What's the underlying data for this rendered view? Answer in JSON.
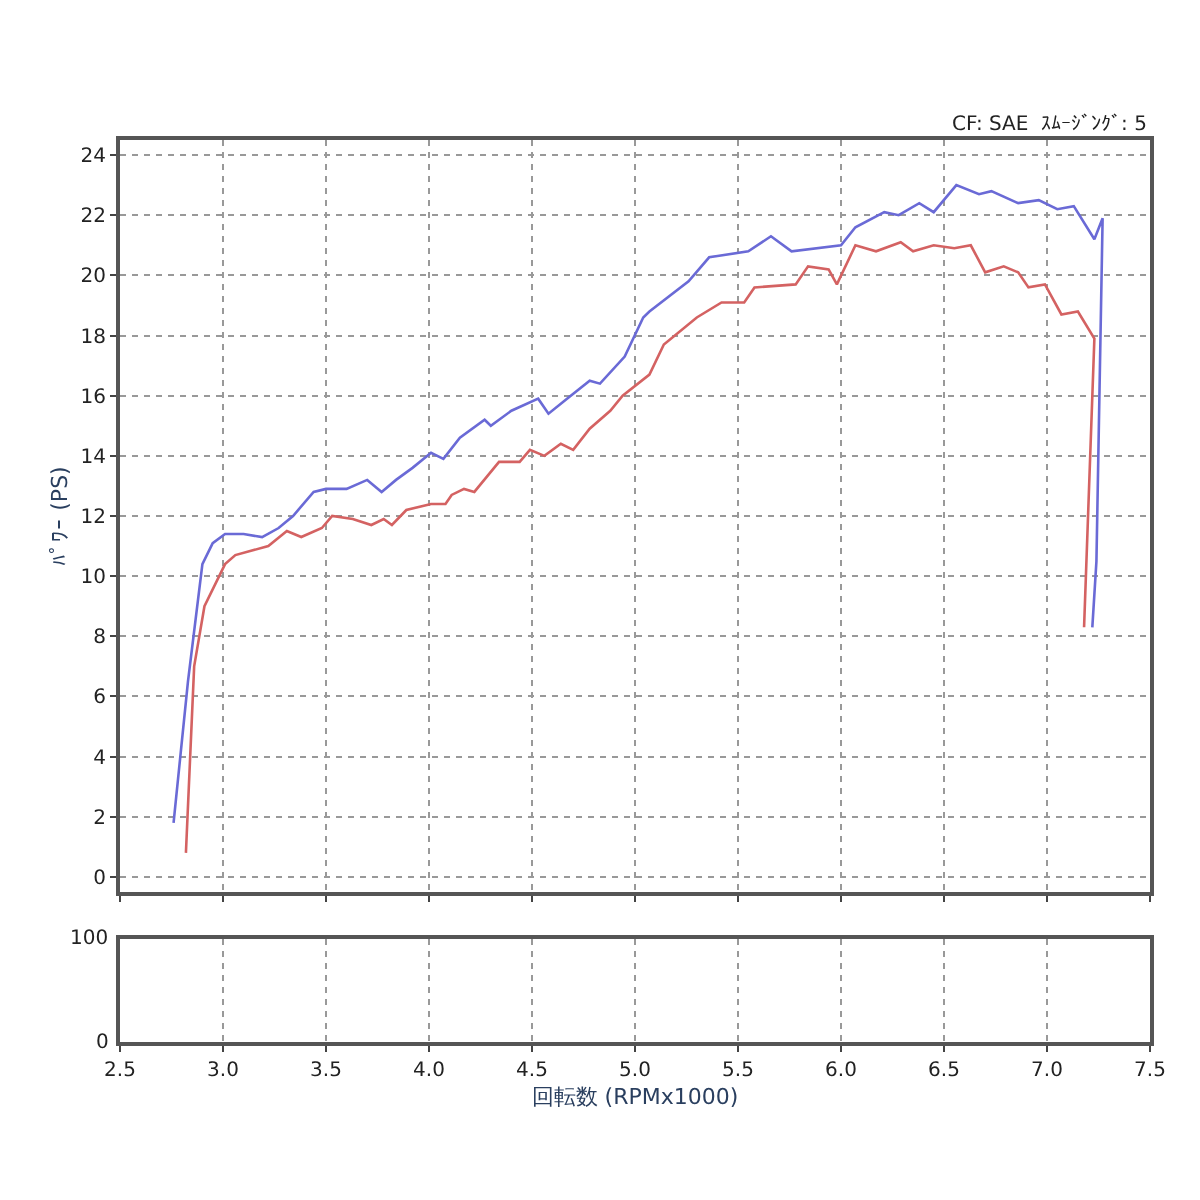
{
  "chart_data": [
    {
      "type": "line",
      "ylabel": "ﾊﾟﾜｰ (PS)",
      "xlabel": "回転数 (RPMx1000)",
      "annotations": [
        "CF: SAE  ｽﾑｰｼﾞﾝｸﾞ: 5"
      ],
      "grid": true,
      "line_style": "solid",
      "xlim": [
        2.5,
        7.5
      ],
      "xticks": [
        2.5,
        {
          "value": 3,
          "label": "3.0"
        },
        3.5,
        {
          "value": 4,
          "label": "4.0"
        },
        4.5,
        {
          "value": 5,
          "label": "5.0"
        },
        5.5,
        {
          "value": 6,
          "label": "6.0"
        },
        6.5,
        {
          "value": 7,
          "label": "7.0"
        },
        7.5
      ],
      "ylim": [
        -0.5,
        24.5
      ],
      "yticks": [
        0,
        2,
        4,
        6,
        8,
        10,
        12,
        14,
        16,
        18,
        20,
        22,
        24
      ],
      "series": [
        {
          "color": "#6a6ad6",
          "x": [
            2.76,
            2.83,
            2.9,
            2.95,
            3.01,
            3.1,
            3.19,
            3.27,
            3.34,
            3.44,
            3.5,
            3.6,
            3.7,
            3.77,
            3.84,
            3.92,
            4.01,
            4.07,
            4.15,
            4.27,
            4.3,
            4.4,
            4.53,
            4.58,
            4.67,
            4.78,
            4.83,
            4.95,
            5.04,
            5.07,
            5.26,
            5.36,
            5.55,
            5.66,
            5.76,
            6.0,
            6.07,
            6.21,
            6.28,
            6.38,
            6.45,
            6.56,
            6.67,
            6.73,
            6.86,
            6.96,
            7.05,
            7.13,
            7.23,
            7.27,
            7.24,
            7.22
          ],
          "values": [
            1.8,
            6.5,
            10.4,
            11.1,
            11.4,
            11.4,
            11.3,
            11.6,
            12.0,
            12.8,
            12.9,
            12.9,
            13.2,
            12.8,
            13.2,
            13.6,
            14.1,
            13.9,
            14.6,
            15.2,
            15.0,
            15.5,
            15.9,
            15.4,
            15.9,
            16.5,
            16.4,
            17.3,
            18.6,
            18.8,
            19.8,
            20.6,
            20.8,
            21.3,
            20.8,
            21.0,
            21.6,
            22.1,
            22.0,
            22.4,
            22.1,
            23.0,
            22.7,
            22.8,
            22.4,
            22.5,
            22.2,
            22.3,
            21.2,
            21.9,
            10.5,
            8.3
          ]
        },
        {
          "color": "#d46262",
          "x": [
            2.82,
            2.86,
            2.91,
            3.01,
            3.06,
            3.22,
            3.31,
            3.38,
            3.48,
            3.53,
            3.63,
            3.72,
            3.78,
            3.82,
            3.89,
            4.01,
            4.08,
            4.11,
            4.17,
            4.22,
            4.34,
            4.44,
            4.49,
            4.56,
            4.64,
            4.7,
            4.78,
            4.88,
            4.94,
            5.07,
            5.14,
            5.3,
            5.42,
            5.53,
            5.58,
            5.78,
            5.84,
            5.94,
            5.98,
            6.07,
            6.17,
            6.29,
            6.35,
            6.45,
            6.55,
            6.63,
            6.7,
            6.79,
            6.86,
            6.91,
            6.99,
            7.07,
            7.15,
            7.23,
            7.18
          ],
          "values": [
            0.8,
            7.0,
            9.0,
            10.4,
            10.7,
            11.0,
            11.5,
            11.3,
            11.6,
            12.0,
            11.9,
            11.7,
            11.9,
            11.7,
            12.2,
            12.4,
            12.4,
            12.7,
            12.9,
            12.8,
            13.8,
            13.8,
            14.2,
            14.0,
            14.4,
            14.2,
            14.9,
            15.5,
            16.0,
            16.7,
            17.7,
            18.6,
            19.1,
            19.1,
            19.6,
            19.7,
            20.3,
            20.2,
            19.7,
            21.0,
            20.8,
            21.1,
            20.8,
            21.0,
            20.9,
            21.0,
            20.1,
            20.3,
            20.1,
            19.6,
            19.7,
            18.7,
            18.8,
            17.9,
            8.3
          ]
        }
      ]
    },
    {
      "type": "other",
      "annotations": [
        "100",
        "0"
      ]
    }
  ]
}
